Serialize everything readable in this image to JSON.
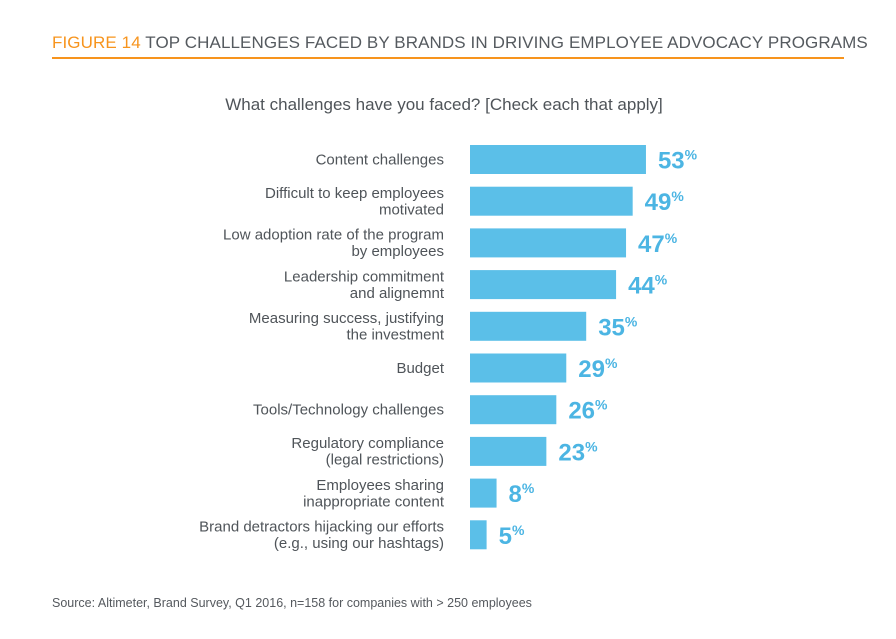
{
  "header": {
    "figure_number": "FIGURE 14",
    "title": "TOP CHALLENGES FACED BY BRANDS IN DRIVING EMPLOYEE ADVOCACY PROGRAMS"
  },
  "colors": {
    "accent": "#f7941d",
    "bar": "#5bbfe8",
    "value_label": "#4cb5e3",
    "text": "#4f5459"
  },
  "chart_data": {
    "type": "bar",
    "orientation": "horizontal",
    "title": "What challenges have you faced? [Check each that apply]",
    "xlabel": "",
    "ylabel": "",
    "xlim": [
      0,
      100
    ],
    "grid": false,
    "unit": "%",
    "categories": [
      [
        "Content challenges"
      ],
      [
        "Difficult to keep employees",
        "motivated"
      ],
      [
        "Low adoption rate of the program",
        "by employees"
      ],
      [
        "Leadership commitment",
        "and alignemnt"
      ],
      [
        "Measuring success, justifying",
        "the investment"
      ],
      [
        "Budget"
      ],
      [
        "Tools/Technology challenges"
      ],
      [
        "Regulatory compliance",
        "(legal restrictions)"
      ],
      [
        "Employees sharing",
        "inappropriate content"
      ],
      [
        "Brand detractors hijacking our efforts",
        "(e.g., using our hashtags)"
      ]
    ],
    "values": [
      53,
      49,
      47,
      44,
      35,
      29,
      26,
      23,
      8,
      5
    ]
  },
  "source": "Source: Altimeter, Brand Survey, Q1 2016, n=158 for companies with > 250 employees"
}
